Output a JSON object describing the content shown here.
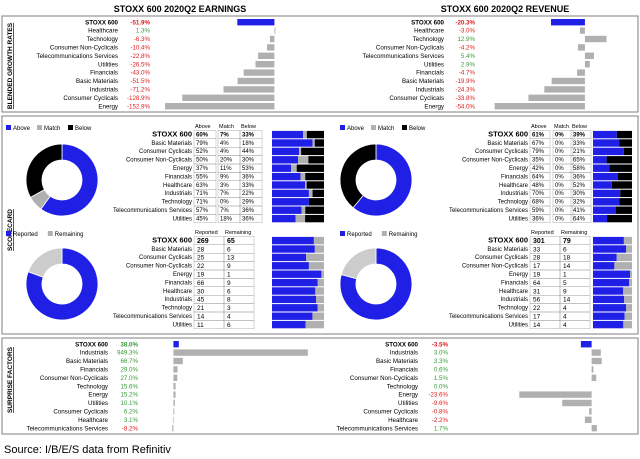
{
  "colors": {
    "blue": "#1f1fe6",
    "black": "#000000",
    "gray": "#b0b0b0",
    "lightgray": "#cccccc",
    "green": "#3a9a3a",
    "red": "#e01b1b",
    "frame": "#7f7f7f"
  },
  "titles": {
    "left": "STOXX 600 2020Q2 EARNINGS",
    "right": "STOXX 600 2020Q2 REVENUE"
  },
  "section_labels": {
    "growth": "BLENDED GROWTH RATES",
    "scorecard": "SCORECARD",
    "surprise": "SURPRISE FACTORS"
  },
  "source": "Source: I/B/E/S data from Refinitiv",
  "legends": {
    "above": "Above",
    "match": "Match",
    "below": "Below",
    "reported": "Reported",
    "remaining": "Remaining"
  },
  "table_headers": {
    "sector": "STOXX 600",
    "above": "Above",
    "match": "Match",
    "below": "Below",
    "reported": "Reported",
    "remaining": "Remaining"
  },
  "chart_data": [
    {
      "id": "earnings_growth",
      "type": "bar",
      "title": "STOXX 600 2020Q2 EARNINGS",
      "ylabel": "BLENDED GROWTH RATES",
      "categories": [
        "STOXX 600",
        "Healthcare",
        "Technology",
        "Consumer Non-Cyclicals",
        "Telecommunications Services",
        "Utilities",
        "Financials",
        "Basic Materials",
        "Industrials",
        "Consumer Cyclicals",
        "Energy"
      ],
      "values": [
        -51.9,
        1.3,
        -6.3,
        -10.4,
        -22.8,
        -26.5,
        -43.0,
        -51.5,
        -71.2,
        -128.9,
        -152.9
      ],
      "labels": [
        "-51.9%",
        "1.3%",
        "-6.3%",
        "-10.4%",
        "-22.8%",
        "-26.5%",
        "-43.0%",
        "-51.5%",
        "-71.2%",
        "-128.9%",
        "-152.9%"
      ],
      "xlim": [
        -160,
        5
      ]
    },
    {
      "id": "revenue_growth",
      "type": "bar",
      "title": "STOXX 600 2020Q2 REVENUE",
      "ylabel": "BLENDED GROWTH RATES",
      "categories": [
        "STOXX 600",
        "Healthcare",
        "Technology",
        "Consumer Non-Cyclicals",
        "Telecommunications Services",
        "Utilities",
        "Financials",
        "Basic Materials",
        "Industrials",
        "Consumer Cyclicals",
        "Energy"
      ],
      "values": [
        -20.3,
        -3.0,
        12.9,
        -4.2,
        5.4,
        2.9,
        -4.7,
        -19.9,
        -24.3,
        -33.8,
        -54.0
      ],
      "labels": [
        "-20.3%",
        "-3.0%",
        "12.9%",
        "-4.2%",
        "5.4%",
        "2.9%",
        "-4.7%",
        "-19.9%",
        "-24.3%",
        "-33.8%",
        "-54.0%"
      ],
      "xlim": [
        -58,
        18
      ]
    },
    {
      "id": "earnings_scorecard",
      "type": "table",
      "title": "STOXX 600",
      "rows": [
        [
          "STOXX 600",
          "60%",
          "7%",
          "33%"
        ],
        [
          "Basic Materials",
          "79%",
          "4%",
          "18%"
        ],
        [
          "Consumer Cyclicals",
          "52%",
          "4%",
          "44%"
        ],
        [
          "Consumer Non-Cyclicals",
          "50%",
          "20%",
          "30%"
        ],
        [
          "Energy",
          "37%",
          "11%",
          "53%"
        ],
        [
          "Financials",
          "55%",
          "9%",
          "36%"
        ],
        [
          "Healthcare",
          "63%",
          "3%",
          "33%"
        ],
        [
          "Industrials",
          "71%",
          "7%",
          "22%"
        ],
        [
          "Technology",
          "71%",
          "0%",
          "29%"
        ],
        [
          "Telecommunications Services",
          "57%",
          "7%",
          "36%"
        ],
        [
          "Utilities",
          "45%",
          "18%",
          "36%"
        ]
      ],
      "series": [
        {
          "name": "Above",
          "values": [
            60,
            79,
            52,
            50,
            37,
            55,
            63,
            71,
            71,
            57,
            45
          ]
        },
        {
          "name": "Match",
          "values": [
            7,
            4,
            4,
            20,
            11,
            9,
            3,
            7,
            0,
            7,
            18
          ]
        },
        {
          "name": "Below",
          "values": [
            33,
            18,
            44,
            30,
            53,
            36,
            33,
            22,
            29,
            36,
            36
          ]
        }
      ],
      "pie": {
        "labels": [
          "Above",
          "Match",
          "Below"
        ],
        "values": [
          60,
          7,
          33
        ]
      }
    },
    {
      "id": "revenue_scorecard",
      "type": "table",
      "title": "STOXX 600",
      "rows": [
        [
          "STOXX 600",
          "61%",
          "0%",
          "39%"
        ],
        [
          "Basic Materials",
          "67%",
          "0%",
          "33%"
        ],
        [
          "Consumer Cyclicals",
          "79%",
          "0%",
          "21%"
        ],
        [
          "Consumer Non-Cyclicals",
          "35%",
          "0%",
          "65%"
        ],
        [
          "Energy",
          "42%",
          "0%",
          "58%"
        ],
        [
          "Financials",
          "64%",
          "0%",
          "36%"
        ],
        [
          "Healthcare",
          "48%",
          "0%",
          "52%"
        ],
        [
          "Industrials",
          "70%",
          "0%",
          "30%"
        ],
        [
          "Technology",
          "68%",
          "0%",
          "32%"
        ],
        [
          "Telecommunications Services",
          "59%",
          "0%",
          "41%"
        ],
        [
          "Utilities",
          "36%",
          "0%",
          "64%"
        ]
      ],
      "series": [
        {
          "name": "Above",
          "values": [
            61,
            67,
            79,
            35,
            42,
            64,
            48,
            70,
            68,
            59,
            36
          ]
        },
        {
          "name": "Match",
          "values": [
            0,
            0,
            0,
            0,
            0,
            0,
            0,
            0,
            0,
            0,
            0
          ]
        },
        {
          "name": "Below",
          "values": [
            39,
            33,
            21,
            65,
            58,
            36,
            52,
            30,
            32,
            41,
            64
          ]
        }
      ],
      "pie": {
        "labels": [
          "Above",
          "Match",
          "Below"
        ],
        "values": [
          61,
          0,
          39
        ]
      }
    },
    {
      "id": "earnings_reported",
      "type": "table",
      "title": "STOXX 600",
      "rows": [
        [
          "STOXX 600",
          "269",
          "65"
        ],
        [
          "Basic Materials",
          "28",
          "6"
        ],
        [
          "Consumer Cyclicals",
          "25",
          "13"
        ],
        [
          "Consumer Non-Cyclicals",
          "22",
          "9"
        ],
        [
          "Energy",
          "19",
          "1"
        ],
        [
          "Financials",
          "66",
          "9"
        ],
        [
          "Healthcare",
          "30",
          "6"
        ],
        [
          "Industrials",
          "45",
          "8"
        ],
        [
          "Technology",
          "21",
          "3"
        ],
        [
          "Telecommunications Services",
          "14",
          "4"
        ],
        [
          "Utilities",
          "11",
          "6"
        ]
      ],
      "series": [
        {
          "name": "Reported",
          "values": [
            269,
            28,
            25,
            22,
            19,
            66,
            30,
            45,
            21,
            14,
            11
          ]
        },
        {
          "name": "Remaining",
          "values": [
            65,
            6,
            13,
            9,
            1,
            9,
            6,
            8,
            3,
            4,
            6
          ]
        }
      ],
      "pie": {
        "labels": [
          "Reported",
          "Remaining"
        ],
        "values": [
          269,
          65
        ]
      }
    },
    {
      "id": "revenue_reported",
      "type": "table",
      "title": "STOXX 600",
      "rows": [
        [
          "STOXX 600",
          "301",
          "79"
        ],
        [
          "Basic Materials",
          "33",
          "6"
        ],
        [
          "Consumer Cyclicals",
          "28",
          "18"
        ],
        [
          "Consumer Non-Cyclicals",
          "17",
          "14"
        ],
        [
          "Energy",
          "19",
          "1"
        ],
        [
          "Financials",
          "64",
          "5"
        ],
        [
          "Healthcare",
          "31",
          "9"
        ],
        [
          "Industrials",
          "56",
          "14"
        ],
        [
          "Technology",
          "22",
          "4"
        ],
        [
          "Telecommunications Services",
          "17",
          "4"
        ],
        [
          "Utilities",
          "14",
          "4"
        ]
      ],
      "series": [
        {
          "name": "Reported",
          "values": [
            301,
            33,
            28,
            17,
            19,
            64,
            31,
            56,
            22,
            17,
            14
          ]
        },
        {
          "name": "Remaining",
          "values": [
            79,
            6,
            18,
            14,
            1,
            5,
            9,
            14,
            4,
            4,
            4
          ]
        }
      ],
      "pie": {
        "labels": [
          "Reported",
          "Remaining"
        ],
        "values": [
          301,
          79
        ]
      }
    },
    {
      "id": "earnings_surprise",
      "type": "bar",
      "title": "STOXX 600",
      "ylabel": "SURPRISE FACTORS",
      "categories": [
        "STOXX 600",
        "Industrials",
        "Basic Materials",
        "Financials",
        "Consumer Non-Cyclicals",
        "Technology",
        "Energy",
        "Utilities",
        "Consumer Cyclicals",
        "Healthcare",
        "Telecommunications Services"
      ],
      "values": [
        38.0,
        949.3,
        66.7,
        29.0,
        27.0,
        15.6,
        15.2,
        10.1,
        6.2,
        3.1,
        -8.2
      ],
      "labels": [
        "38.0%",
        "949.3%",
        "66.7%",
        "29.0%",
        "27.0%",
        "15.6%",
        "15.2%",
        "10.1%",
        "6.2%",
        "3.1%",
        "-8.2%"
      ],
      "xlim": [
        -10,
        1000
      ]
    },
    {
      "id": "revenue_surprise",
      "type": "bar",
      "title": "STOXX 600",
      "ylabel": "SURPRISE FACTORS",
      "categories": [
        "STOXX 600",
        "Industrials",
        "Basic Materials",
        "Financials",
        "Consumer Non-Cyclicals",
        "Technology",
        "Energy",
        "Utilities",
        "Consumer Cyclicals",
        "Healthcare",
        "Telecommunications Services"
      ],
      "values": [
        -3.5,
        3.0,
        3.3,
        0.6,
        1.5,
        0.0,
        -23.6,
        -9.6,
        -0.8,
        -2.2,
        1.7
      ],
      "labels": [
        "-3.5%",
        "3.0%",
        "3.3%",
        "0.6%",
        "1.5%",
        "0.0%",
        "-23.6%",
        "-9.6%",
        "-0.8%",
        "-2.2%",
        "1.7%"
      ],
      "xlim": [
        -25,
        6
      ]
    }
  ]
}
